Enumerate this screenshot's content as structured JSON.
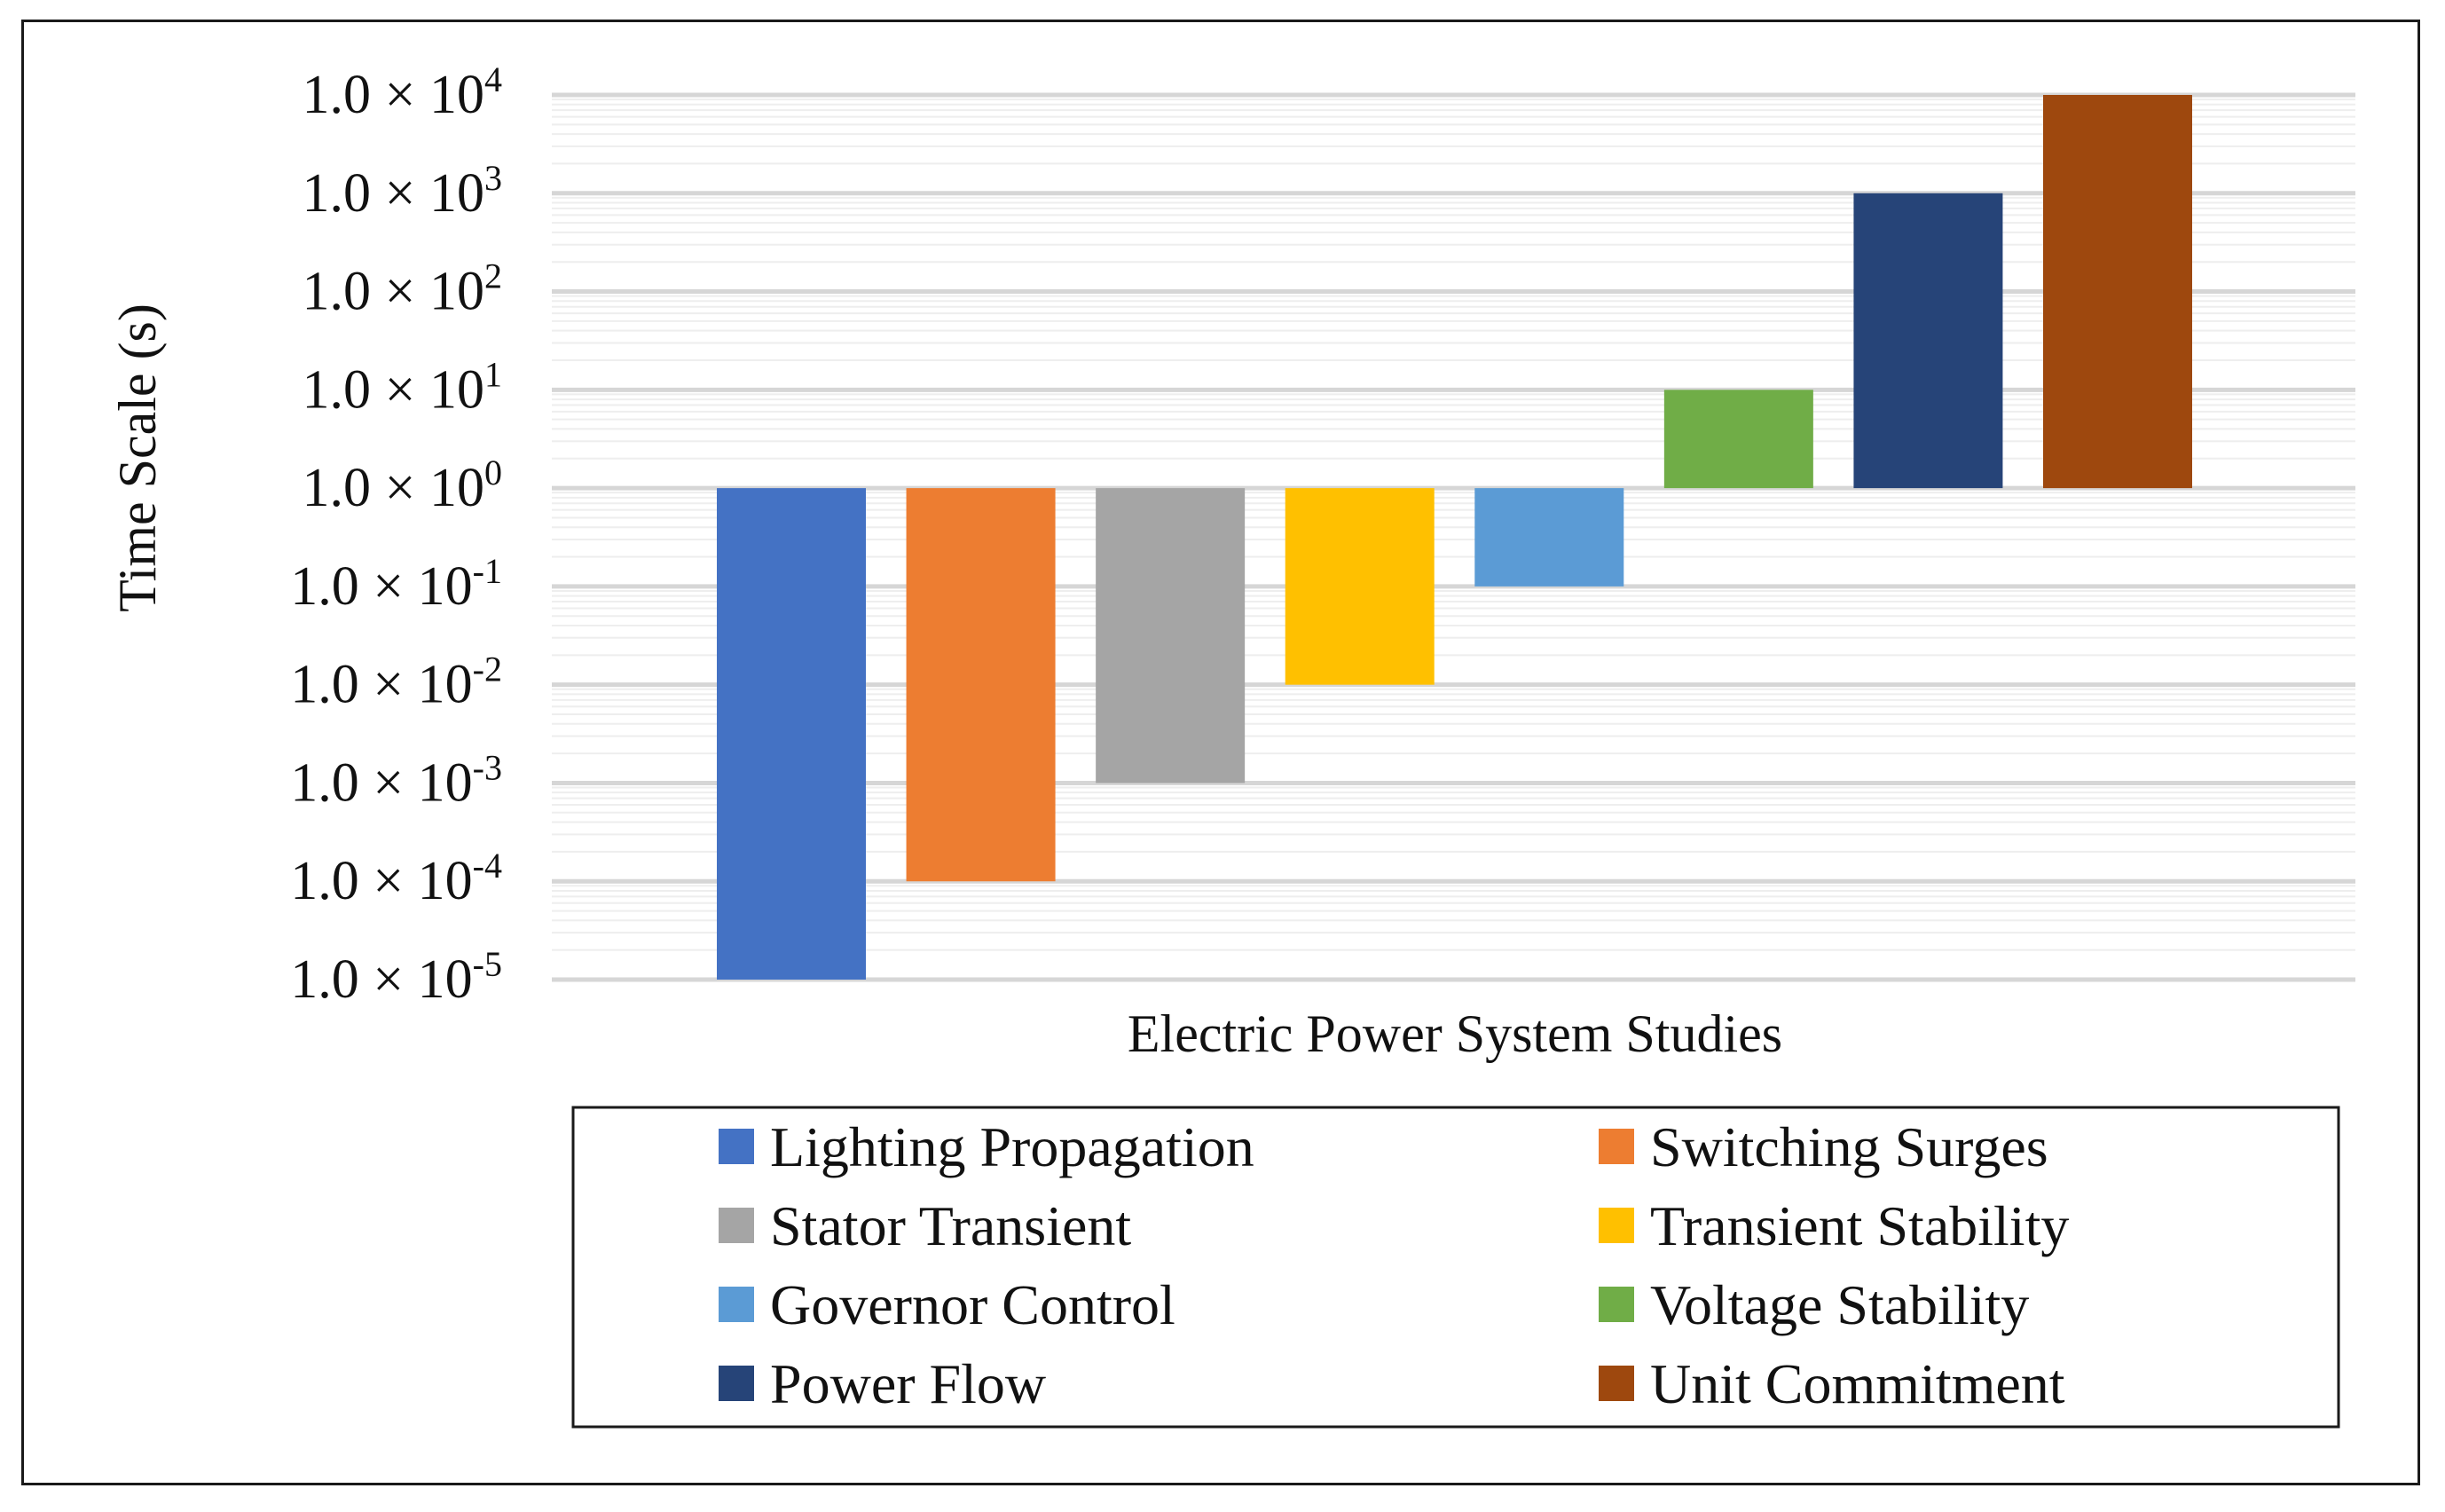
{
  "chart_data": {
    "type": "bar",
    "scale": "log",
    "baseline": 1,
    "xlabel": "Electric Power System Studies",
    "ylabel": "Time Scale (s)",
    "ylim": [
      1e-05,
      10000
    ],
    "y_ticks": [
      {
        "value": 10000,
        "mantissa": "1.0 × 10",
        "exponent": "4"
      },
      {
        "value": 1000,
        "mantissa": "1.0 × 10",
        "exponent": "3"
      },
      {
        "value": 100,
        "mantissa": "1.0 × 10",
        "exponent": "2"
      },
      {
        "value": 10,
        "mantissa": "1.0 × 10",
        "exponent": "1"
      },
      {
        "value": 1,
        "mantissa": "1.0 × 10",
        "exponent": "0"
      },
      {
        "value": 0.1,
        "mantissa": "1.0 × 10",
        "exponent": "-1"
      },
      {
        "value": 0.01,
        "mantissa": "1.0 × 10",
        "exponent": "-2"
      },
      {
        "value": 0.001,
        "mantissa": "1.0 × 10",
        "exponent": "-3"
      },
      {
        "value": 0.0001,
        "mantissa": "1.0 × 10",
        "exponent": "-4"
      },
      {
        "value": 1e-05,
        "mantissa": "1.0 × 10",
        "exponent": "-5"
      }
    ],
    "grid": true,
    "legend_position": "bottom",
    "series": [
      {
        "name": "Lighting Propagation",
        "value": 1e-05,
        "color": "#4472C4"
      },
      {
        "name": "Switching Surges",
        "value": 0.0001,
        "color": "#ED7D31"
      },
      {
        "name": "Stator Transient",
        "value": 0.001,
        "color": "#A5A5A5"
      },
      {
        "name": "Transient Stability",
        "value": 0.01,
        "color": "#FFC000"
      },
      {
        "name": "Governor Control",
        "value": 0.1,
        "color": "#5B9BD5"
      },
      {
        "name": "Voltage Stability",
        "value": 10,
        "color": "#70AD47"
      },
      {
        "name": "Power Flow",
        "value": 1000,
        "color": "#264478"
      },
      {
        "name": "Unit Commitment",
        "value": 10000,
        "color": "#9E480E"
      }
    ]
  }
}
